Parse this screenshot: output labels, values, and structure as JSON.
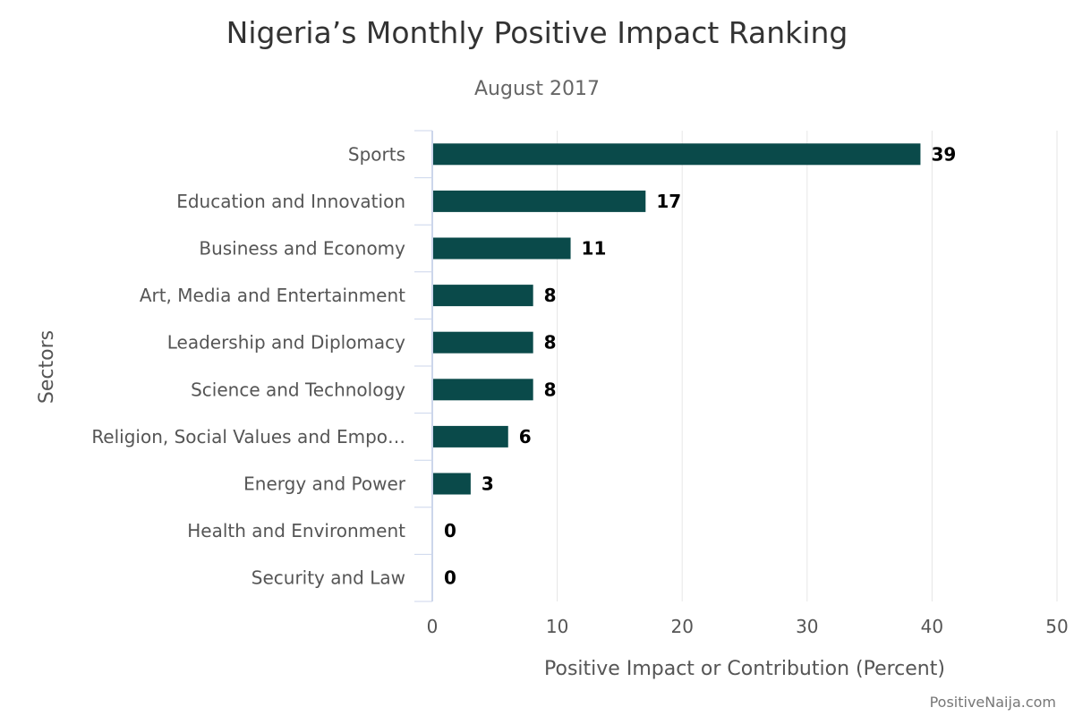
{
  "chart_data": {
    "type": "bar",
    "orientation": "horizontal",
    "title": "Nigeria’s Monthly Positive Impact Ranking",
    "subtitle": "August 2017",
    "xlabel": "Positive Impact or Contribution (Percent)",
    "ylabel": "Sectors",
    "xlim": [
      0,
      50
    ],
    "xticks": [
      0,
      10,
      20,
      30,
      40,
      50
    ],
    "grid": true,
    "bar_color": "#0a4a4a",
    "categories": [
      "Sports",
      "Education and Innovation",
      "Business and Economy",
      "Art, Media and Entertainment",
      "Leadership and Diplomacy",
      "Science and Technology",
      "Religion, Social Values and Empo…",
      "Energy and Power",
      "Health and Environment",
      "Security and Law"
    ],
    "values": [
      39,
      17,
      11,
      8,
      8,
      8,
      6,
      3,
      0,
      0
    ]
  },
  "credit": "PositiveNaija.com"
}
